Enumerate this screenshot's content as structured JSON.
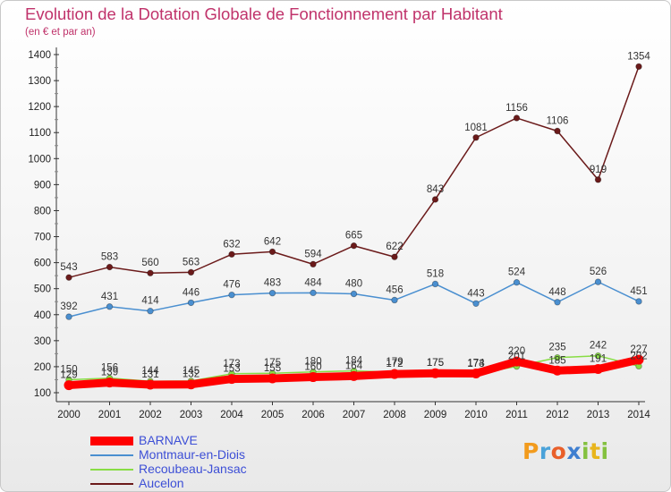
{
  "title": "Evolution de la Dotation Globale de Fonctionnement par Habitant",
  "subtitle": "(en € et par an)",
  "logo": {
    "p": "P",
    "r": "r",
    "o": "o",
    "x": "x",
    "i": "i",
    "t": "t",
    "i2": "i"
  },
  "chart_data": {
    "type": "line",
    "categories": [
      "2000",
      "2001",
      "2002",
      "2003",
      "2004",
      "2005",
      "2006",
      "2007",
      "2008",
      "2009",
      "2010",
      "2011",
      "2012",
      "2013",
      "2014"
    ],
    "ylim": [
      100,
      1400
    ],
    "yticks": [
      100,
      200,
      300,
      400,
      500,
      600,
      700,
      800,
      900,
      1000,
      1100,
      1200,
      1300,
      1400
    ],
    "grid": false,
    "legend_position": "bottom-left",
    "series": [
      {
        "name": "BARNAVE",
        "color": "#ff0000",
        "values": [
          129,
          139,
          131,
          132,
          153,
          155,
          160,
          164,
          172,
          175,
          174,
          220,
          185,
          191,
          227
        ],
        "show_labels": false
      },
      {
        "name": "Montmaur-en-Diois",
        "color": "#4a8fd0",
        "values": [
          392,
          431,
          414,
          446,
          476,
          483,
          484,
          480,
          456,
          518,
          443,
          524,
          448,
          526,
          451
        ],
        "show_labels": true
      },
      {
        "name": "Recoubeau-Jansac",
        "color": "#88dd44",
        "values": [
          150,
          156,
          144,
          145,
          173,
          175,
          180,
          184,
          179,
          175,
          173,
          201,
          235,
          242,
          202
        ],
        "show_labels": true
      },
      {
        "name": "Aucelon",
        "color": "#6b1a1a",
        "values": [
          543,
          583,
          560,
          563,
          632,
          642,
          594,
          665,
          622,
          843,
          1081,
          1156,
          1106,
          919,
          1354
        ],
        "show_labels": true
      }
    ]
  }
}
